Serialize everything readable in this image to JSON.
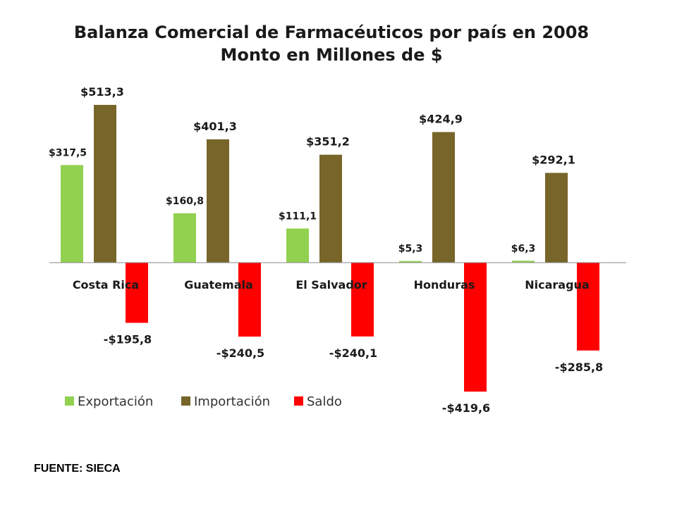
{
  "title_line1": "Balanza Comercial de Farmacéuticos por país en 2008",
  "title_line2": "Monto en Millones de $",
  "source": "FUENTE: SIECA",
  "colors": {
    "Exportación": "#92d050",
    "Importación": "#776529",
    "Saldo": "#ff0000"
  },
  "chart_data": {
    "type": "bar",
    "title": "Balanza Comercial de Farmacéuticos por país en 2008 Monto en Millones de $",
    "categories": [
      "Costa Rica",
      "Guatemala",
      "El Salvador",
      "Honduras",
      "Nicaragua"
    ],
    "series": [
      {
        "name": "Exportación",
        "values": [
          317.5,
          160.8,
          111.1,
          5.3,
          6.3
        ],
        "labels": [
          "$317,5",
          "$160,8",
          "$111,1",
          "$5,3",
          "$6,3"
        ]
      },
      {
        "name": "Importación",
        "values": [
          513.3,
          401.3,
          351.2,
          424.9,
          292.1
        ],
        "labels": [
          "$513,3",
          "$401,3",
          "$351,2",
          "$424,9",
          "$292,1"
        ]
      },
      {
        "name": "Saldo",
        "values": [
          -195.8,
          -240.5,
          -240.1,
          -419.6,
          -285.8
        ],
        "labels": [
          "-$195,8",
          "-$240,5",
          "-$240,1",
          "-$419,6",
          "-$285,8"
        ]
      }
    ],
    "legend_position": "bottom-left",
    "grid": false
  }
}
